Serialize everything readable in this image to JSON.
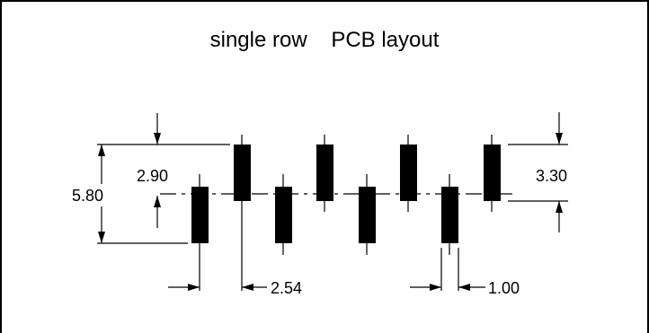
{
  "title": "single row    PCB layout",
  "dimensions": {
    "height_total": "5.80",
    "half_height": "2.90",
    "row_offset": "3.30",
    "pitch": "2.54",
    "pad_width": "1.00"
  },
  "colors": {
    "ink": "#000000",
    "background": "#ffffff"
  }
}
